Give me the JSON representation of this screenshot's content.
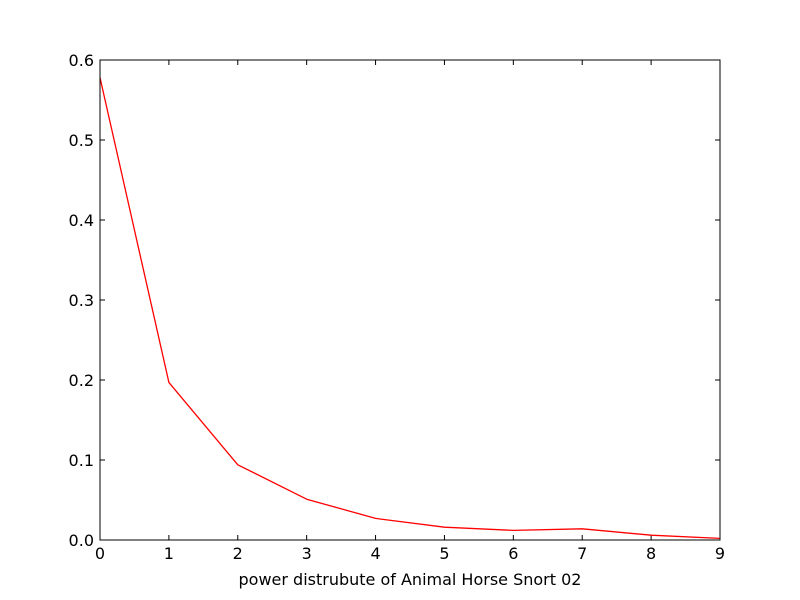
{
  "chart_data": {
    "type": "line",
    "title": "",
    "xlabel": "power distrubute of Animal Horse Snort 02",
    "ylabel": "",
    "xlim": [
      0,
      9
    ],
    "ylim": [
      0.0,
      0.6
    ],
    "grid": false,
    "legend": "none",
    "x_ticks": [
      "0",
      "1",
      "2",
      "3",
      "4",
      "5",
      "6",
      "7",
      "8",
      "9"
    ],
    "y_ticks": [
      "0.0",
      "0.1",
      "0.2",
      "0.3",
      "0.4",
      "0.5",
      "0.6"
    ],
    "series": [
      {
        "color": "#ff0000",
        "x": [
          0,
          1,
          2,
          3,
          4,
          5,
          6,
          7,
          8,
          9
        ],
        "y": [
          0.578,
          0.197,
          0.094,
          0.051,
          0.027,
          0.016,
          0.012,
          0.014,
          0.006,
          0.002
        ]
      }
    ]
  }
}
